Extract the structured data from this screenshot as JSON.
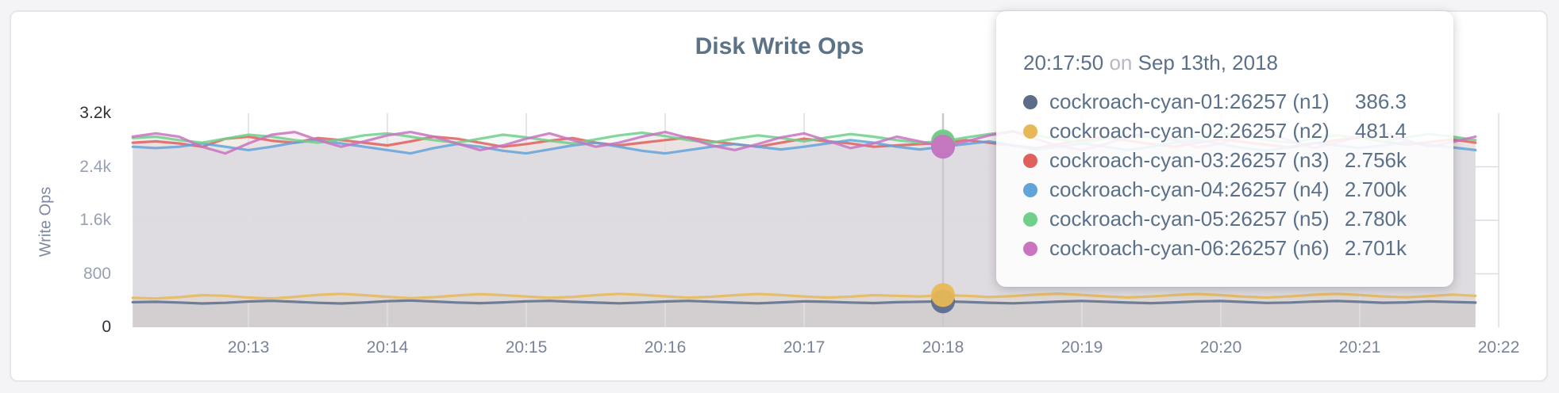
{
  "chart_data": {
    "type": "line",
    "title": "Disk Write Ops",
    "ylabel": "Write Ops",
    "xlabel": "",
    "ylim": [
      0,
      3200
    ],
    "grid": "horizontal and vertical light gray gridlines",
    "legend_position": "hover tooltip overlay, top-right",
    "x_axis_origin": "20:12:00",
    "x_start_s": 10,
    "x_step_s": 10,
    "x_ticks": [
      "20:13",
      "20:14",
      "20:15",
      "20:16",
      "20:17",
      "20:18",
      "20:19",
      "20:20",
      "20:21",
      "20:22"
    ],
    "y_ticks": [
      {
        "label": "0",
        "value": 0,
        "minmax": true
      },
      {
        "label": "800",
        "value": 800,
        "minmax": false
      },
      {
        "label": "1.6k",
        "value": 1600,
        "minmax": false
      },
      {
        "label": "2.4k",
        "value": 2400,
        "minmax": false
      },
      {
        "label": "3.2k",
        "value": 3200,
        "minmax": true
      }
    ],
    "hover": {
      "index": 35,
      "time": "20:17:50"
    },
    "series": [
      {
        "name": "cockroach-cyan-01:26257 (n1)",
        "color": "#5c6d8c",
        "values": [
          375,
          380,
          370,
          355,
          365,
          385,
          395,
          380,
          365,
          355,
          370,
          390,
          400,
          385,
          370,
          360,
          372,
          388,
          395,
          380,
          368,
          358,
          370,
          385,
          395,
          382,
          368,
          358,
          372,
          388,
          380,
          370,
          362,
          374,
          380,
          386.3,
          378,
          366,
          358,
          370,
          384,
          394,
          382,
          368,
          360,
          372,
          386,
          392,
          378,
          364,
          370,
          384,
          392,
          380,
          366,
          372,
          386,
          378,
          368
        ]
      },
      {
        "name": "cockroach-cyan-02:26257 (n2)",
        "color": "#e7b856",
        "values": [
          440,
          430,
          450,
          480,
          470,
          445,
          430,
          455,
          485,
          500,
          480,
          455,
          435,
          450,
          475,
          495,
          480,
          460,
          440,
          455,
          480,
          500,
          485,
          462,
          442,
          456,
          480,
          498,
          482,
          460,
          444,
          458,
          480,
          470,
          460,
          481.4,
          470,
          452,
          466,
          488,
          502,
          484,
          462,
          446,
          460,
          482,
          498,
          480,
          458,
          444,
          462,
          486,
          500,
          482,
          460,
          448,
          466,
          488,
          470
        ]
      },
      {
        "name": "cockroach-cyan-03:26257 (n3)",
        "color": "#e0605c",
        "values": [
          2760,
          2780,
          2750,
          2700,
          2820,
          2850,
          2790,
          2760,
          2830,
          2800,
          2760,
          2720,
          2780,
          2850,
          2820,
          2760,
          2700,
          2740,
          2790,
          2830,
          2760,
          2720,
          2760,
          2800,
          2840,
          2780,
          2740,
          2700,
          2760,
          2820,
          2780,
          2750,
          2700,
          2720,
          2740,
          2756,
          2800,
          2760,
          2720,
          2680,
          2740,
          2800,
          2850,
          2790,
          2740,
          2700,
          2760,
          2810,
          2770,
          2730,
          2690,
          2750,
          2800,
          2840,
          2780,
          2730,
          2770,
          2810,
          2760
        ]
      },
      {
        "name": "cockroach-cyan-04:26257 (n4)",
        "color": "#64a3d9",
        "values": [
          2700,
          2680,
          2700,
          2750,
          2700,
          2650,
          2700,
          2760,
          2800,
          2750,
          2700,
          2650,
          2600,
          2680,
          2740,
          2700,
          2640,
          2600,
          2660,
          2720,
          2760,
          2700,
          2640,
          2600,
          2650,
          2700,
          2740,
          2700,
          2660,
          2700,
          2750,
          2800,
          2760,
          2700,
          2660,
          2700,
          2740,
          2780,
          2720,
          2660,
          2700,
          2750,
          2700,
          2650,
          2700,
          2760,
          2800,
          2740,
          2680,
          2640,
          2700,
          2760,
          2720,
          2680,
          2720,
          2770,
          2730,
          2690,
          2650
        ]
      },
      {
        "name": "cockroach-cyan-05:26257 (n5)",
        "color": "#70cf8b",
        "values": [
          2830,
          2850,
          2800,
          2760,
          2820,
          2880,
          2850,
          2800,
          2760,
          2810,
          2870,
          2900,
          2850,
          2800,
          2760,
          2820,
          2880,
          2840,
          2790,
          2750,
          2810,
          2870,
          2910,
          2860,
          2800,
          2760,
          2820,
          2870,
          2830,
          2780,
          2840,
          2890,
          2850,
          2800,
          2760,
          2780,
          2840,
          2890,
          2930,
          2870,
          2810,
          2760,
          2820,
          2880,
          2840,
          2790,
          2850,
          2900,
          2860,
          2800,
          2760,
          2820,
          2870,
          2830,
          2780,
          2840,
          2890,
          2850,
          2800
        ]
      },
      {
        "name": "cockroach-cyan-06:26257 (n6)",
        "color": "#c973c1",
        "values": [
          2850,
          2900,
          2850,
          2700,
          2600,
          2750,
          2880,
          2920,
          2800,
          2700,
          2780,
          2870,
          2920,
          2850,
          2750,
          2650,
          2720,
          2820,
          2900,
          2800,
          2700,
          2760,
          2850,
          2920,
          2830,
          2720,
          2650,
          2740,
          2840,
          2900,
          2790,
          2680,
          2750,
          2850,
          2780,
          2701,
          2780,
          2870,
          2930,
          2820,
          2710,
          2650,
          2740,
          2850,
          2920,
          2800,
          2690,
          2750,
          2860,
          2910,
          2790,
          2680,
          2760,
          2860,
          2920,
          2800,
          2700,
          2770,
          2850
        ]
      }
    ]
  },
  "tooltip": {
    "time": "20:17:50",
    "separator": "on",
    "date": "Sep 13th, 2018",
    "rows": [
      {
        "label": "cockroach-cyan-01:26257 (n1)",
        "value": "386.3",
        "color": "#5c6d8c"
      },
      {
        "label": "cockroach-cyan-02:26257 (n2)",
        "value": "481.4",
        "color": "#e7b856"
      },
      {
        "label": "cockroach-cyan-03:26257 (n3)",
        "value": "2.756k",
        "color": "#e0605c"
      },
      {
        "label": "cockroach-cyan-04:26257 (n4)",
        "value": "2.700k",
        "color": "#64a3d9"
      },
      {
        "label": "cockroach-cyan-05:26257 (n5)",
        "value": "2.780k",
        "color": "#70cf8b"
      },
      {
        "label": "cockroach-cyan-06:26257 (n6)",
        "value": "2.701k",
        "color": "#c973c1"
      }
    ]
  }
}
